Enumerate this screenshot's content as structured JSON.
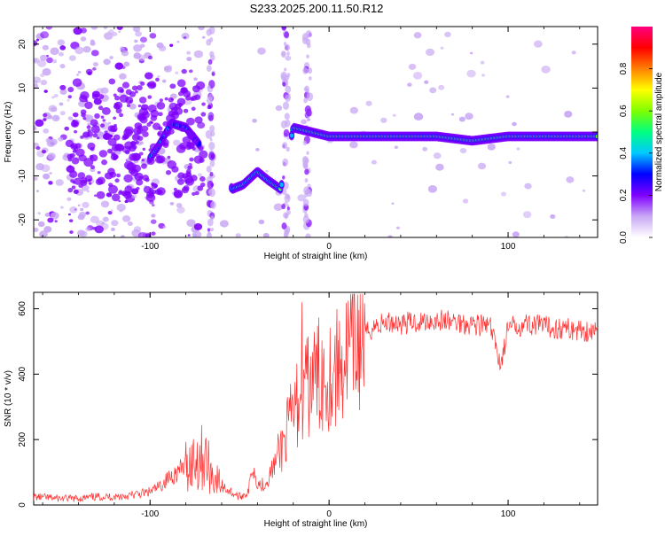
{
  "figure": {
    "title": "S233.2025.200.11.50.R12"
  },
  "chart_data": [
    {
      "type": "heatmap",
      "xlabel": "Height of straight line (km)",
      "ylabel": "Frequency (Hz)",
      "xlim": [
        -165,
        150
      ],
      "ylim": [
        -24,
        24
      ],
      "x_ticks": [
        -100,
        0,
        100
      ],
      "y_ticks": [
        -20,
        -10,
        0,
        10,
        20
      ],
      "colorbar": {
        "label": "Normalized spectral amplitude",
        "range": [
          0,
          1
        ],
        "ticks": [
          0.0,
          0.2,
          0.4,
          0.6,
          0.8
        ],
        "colormap": [
          "#ffffff",
          "#c9a8f5",
          "#7f00ff",
          "#0000ff",
          "#00c8ff",
          "#00ff80",
          "#7fff00",
          "#ffff00",
          "#ff8000",
          "#ff0000",
          "#ff0080"
        ]
      },
      "ridge": [
        {
          "x": -100,
          "y": -6
        },
        {
          "x": -95,
          "y": -3
        },
        {
          "x": -88,
          "y": 2
        },
        {
          "x": -80,
          "y": 1
        },
        {
          "x": -74,
          "y": -2
        },
        {
          "x": -54,
          "y": -13
        },
        {
          "x": -48,
          "y": -12
        },
        {
          "x": -40,
          "y": -9
        },
        {
          "x": -34,
          "y": -11
        },
        {
          "x": -27,
          "y": -13
        },
        {
          "x": -20,
          "y": 1
        },
        {
          "x": -10,
          "y": 0
        },
        {
          "x": 0,
          "y": -1
        },
        {
          "x": 20,
          "y": -1
        },
        {
          "x": 40,
          "y": -1
        },
        {
          "x": 60,
          "y": -1
        },
        {
          "x": 80,
          "y": -2
        },
        {
          "x": 100,
          "y": -1
        },
        {
          "x": 120,
          "y": -1
        },
        {
          "x": 150,
          "y": -1
        }
      ],
      "grid": false
    },
    {
      "type": "line",
      "xlabel": "Height of straight line (km)",
      "ylabel": "SNR (10 * v/v)",
      "xlim": [
        -165,
        150
      ],
      "ylim": [
        0,
        650
      ],
      "x_ticks": [
        -100,
        0,
        100
      ],
      "y_ticks": [
        0,
        200,
        400,
        600
      ],
      "color": "#ff3030",
      "series": [
        {
          "x": [
            -165,
            -150,
            -140,
            -130,
            -120,
            -110,
            -100,
            -95,
            -90,
            -85,
            -80,
            -75,
            -70,
            -65,
            -60,
            -55,
            -50,
            -45,
            -43,
            -40,
            -38,
            -35,
            -30,
            -25,
            -20,
            -16,
            -12,
            -8,
            -4,
            0,
            5,
            10,
            15,
            20,
            25,
            30,
            35,
            40,
            50,
            60,
            70,
            80,
            90,
            96,
            100,
            110,
            120,
            130,
            140,
            150
          ],
          "y": [
            25,
            20,
            20,
            25,
            25,
            30,
            40,
            55,
            80,
            100,
            120,
            140,
            150,
            90,
            60,
            40,
            25,
            40,
            120,
            70,
            60,
            70,
            130,
            200,
            280,
            330,
            360,
            390,
            400,
            400,
            420,
            460,
            500,
            520,
            545,
            555,
            560,
            555,
            560,
            565,
            560,
            555,
            545,
            430,
            540,
            555,
            545,
            540,
            535,
            530
          ]
        }
      ],
      "grid": false
    }
  ]
}
